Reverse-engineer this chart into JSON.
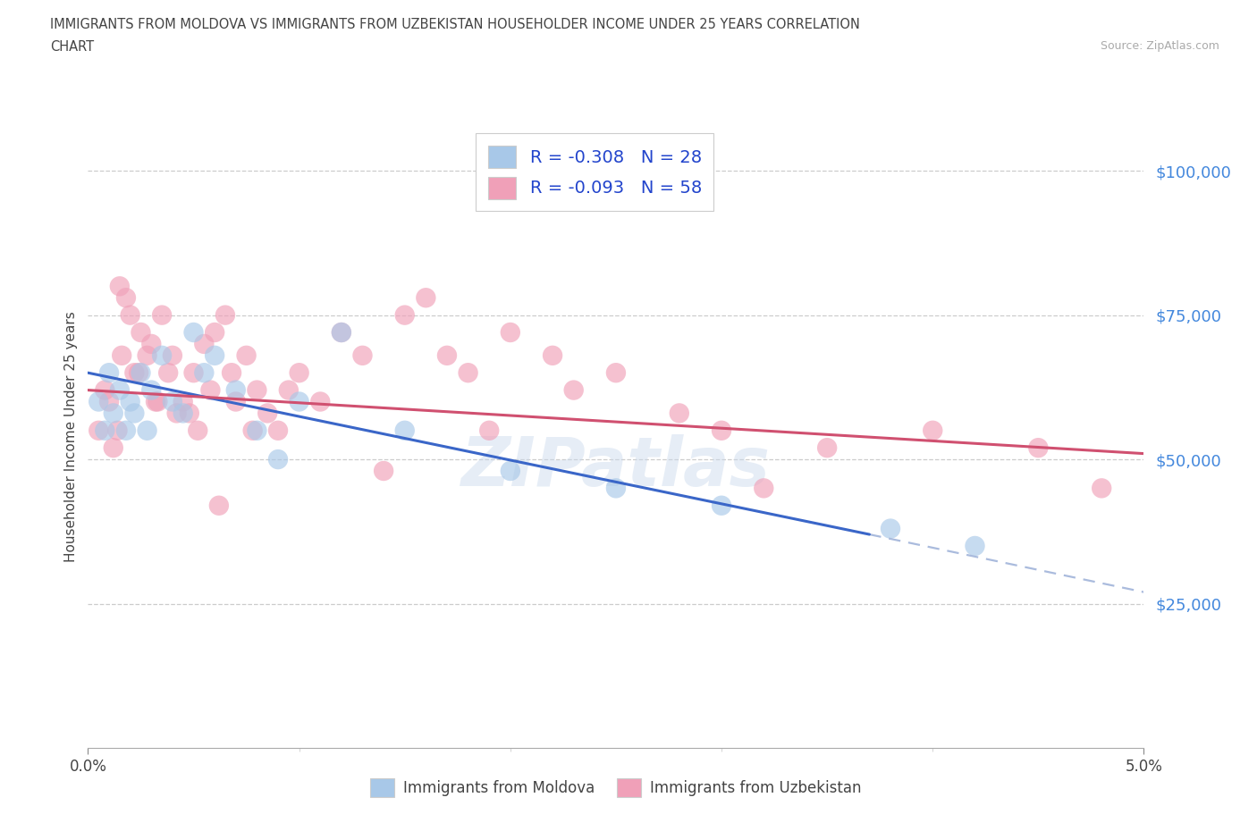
{
  "title_line1": "IMMIGRANTS FROM MOLDOVA VS IMMIGRANTS FROM UZBEKISTAN HOUSEHOLDER INCOME UNDER 25 YEARS CORRELATION",
  "title_line2": "CHART",
  "source_text": "Source: ZipAtlas.com",
  "ylabel": "Householder Income Under 25 years",
  "ytick_labels": [
    "$25,000",
    "$50,000",
    "$75,000",
    "$100,000"
  ],
  "ytick_values": [
    25000,
    50000,
    75000,
    100000
  ],
  "xlim": [
    0.0,
    5.0
  ],
  "ylim": [
    0,
    108000
  ],
  "legend_moldova": "R = -0.308   N = 28",
  "legend_uzbekistan": "R = -0.093   N = 58",
  "moldova_color": "#a8c8e8",
  "uzbekistan_color": "#f0a0b8",
  "moldova_line_color": "#3a66c8",
  "uzbekistan_line_color": "#d05070",
  "dashed_line_color": "#aabbdd",
  "moldova_scatter_x": [
    0.05,
    0.08,
    0.1,
    0.12,
    0.15,
    0.18,
    0.2,
    0.22,
    0.25,
    0.28,
    0.3,
    0.35,
    0.4,
    0.5,
    0.55,
    0.6,
    0.7,
    0.8,
    1.0,
    1.2,
    1.5,
    2.0,
    2.5,
    3.0,
    3.8,
    4.2,
    0.45,
    0.9
  ],
  "moldova_scatter_y": [
    60000,
    55000,
    65000,
    58000,
    62000,
    55000,
    60000,
    58000,
    65000,
    55000,
    62000,
    68000,
    60000,
    72000,
    65000,
    68000,
    62000,
    55000,
    60000,
    72000,
    55000,
    48000,
    45000,
    42000,
    38000,
    35000,
    58000,
    50000
  ],
  "uzbekistan_scatter_x": [
    0.05,
    0.08,
    0.1,
    0.12,
    0.15,
    0.18,
    0.2,
    0.22,
    0.25,
    0.28,
    0.3,
    0.32,
    0.35,
    0.38,
    0.4,
    0.42,
    0.45,
    0.5,
    0.55,
    0.58,
    0.6,
    0.65,
    0.68,
    0.7,
    0.75,
    0.8,
    0.85,
    0.9,
    1.0,
    1.1,
    1.2,
    1.3,
    1.5,
    1.6,
    1.7,
    1.8,
    2.0,
    2.2,
    2.5,
    2.8,
    3.0,
    3.5,
    4.0,
    4.5,
    4.8,
    0.16,
    0.24,
    0.33,
    0.48,
    1.4,
    1.9,
    2.3,
    3.2,
    0.52,
    0.62,
    0.78,
    0.95,
    0.14
  ],
  "uzbekistan_scatter_y": [
    55000,
    62000,
    60000,
    52000,
    80000,
    78000,
    75000,
    65000,
    72000,
    68000,
    70000,
    60000,
    75000,
    65000,
    68000,
    58000,
    60000,
    65000,
    70000,
    62000,
    72000,
    75000,
    65000,
    60000,
    68000,
    62000,
    58000,
    55000,
    65000,
    60000,
    72000,
    68000,
    75000,
    78000,
    68000,
    65000,
    72000,
    68000,
    65000,
    58000,
    55000,
    52000,
    55000,
    52000,
    45000,
    68000,
    65000,
    60000,
    58000,
    48000,
    55000,
    62000,
    45000,
    55000,
    42000,
    55000,
    62000,
    55000
  ],
  "mol_line_x0": 0.0,
  "mol_line_y0": 65000,
  "mol_line_x1": 3.7,
  "mol_line_y1": 37000,
  "mol_dash_x0": 3.7,
  "mol_dash_y0": 37000,
  "mol_dash_x1": 5.0,
  "mol_dash_y1": 27000,
  "uzb_line_x0": 0.0,
  "uzb_line_y0": 62000,
  "uzb_line_x1": 5.0,
  "uzb_line_y1": 51000,
  "bottom_legend_moldova": "Immigrants from Moldova",
  "bottom_legend_uzbekistan": "Immigrants from Uzbekistan"
}
